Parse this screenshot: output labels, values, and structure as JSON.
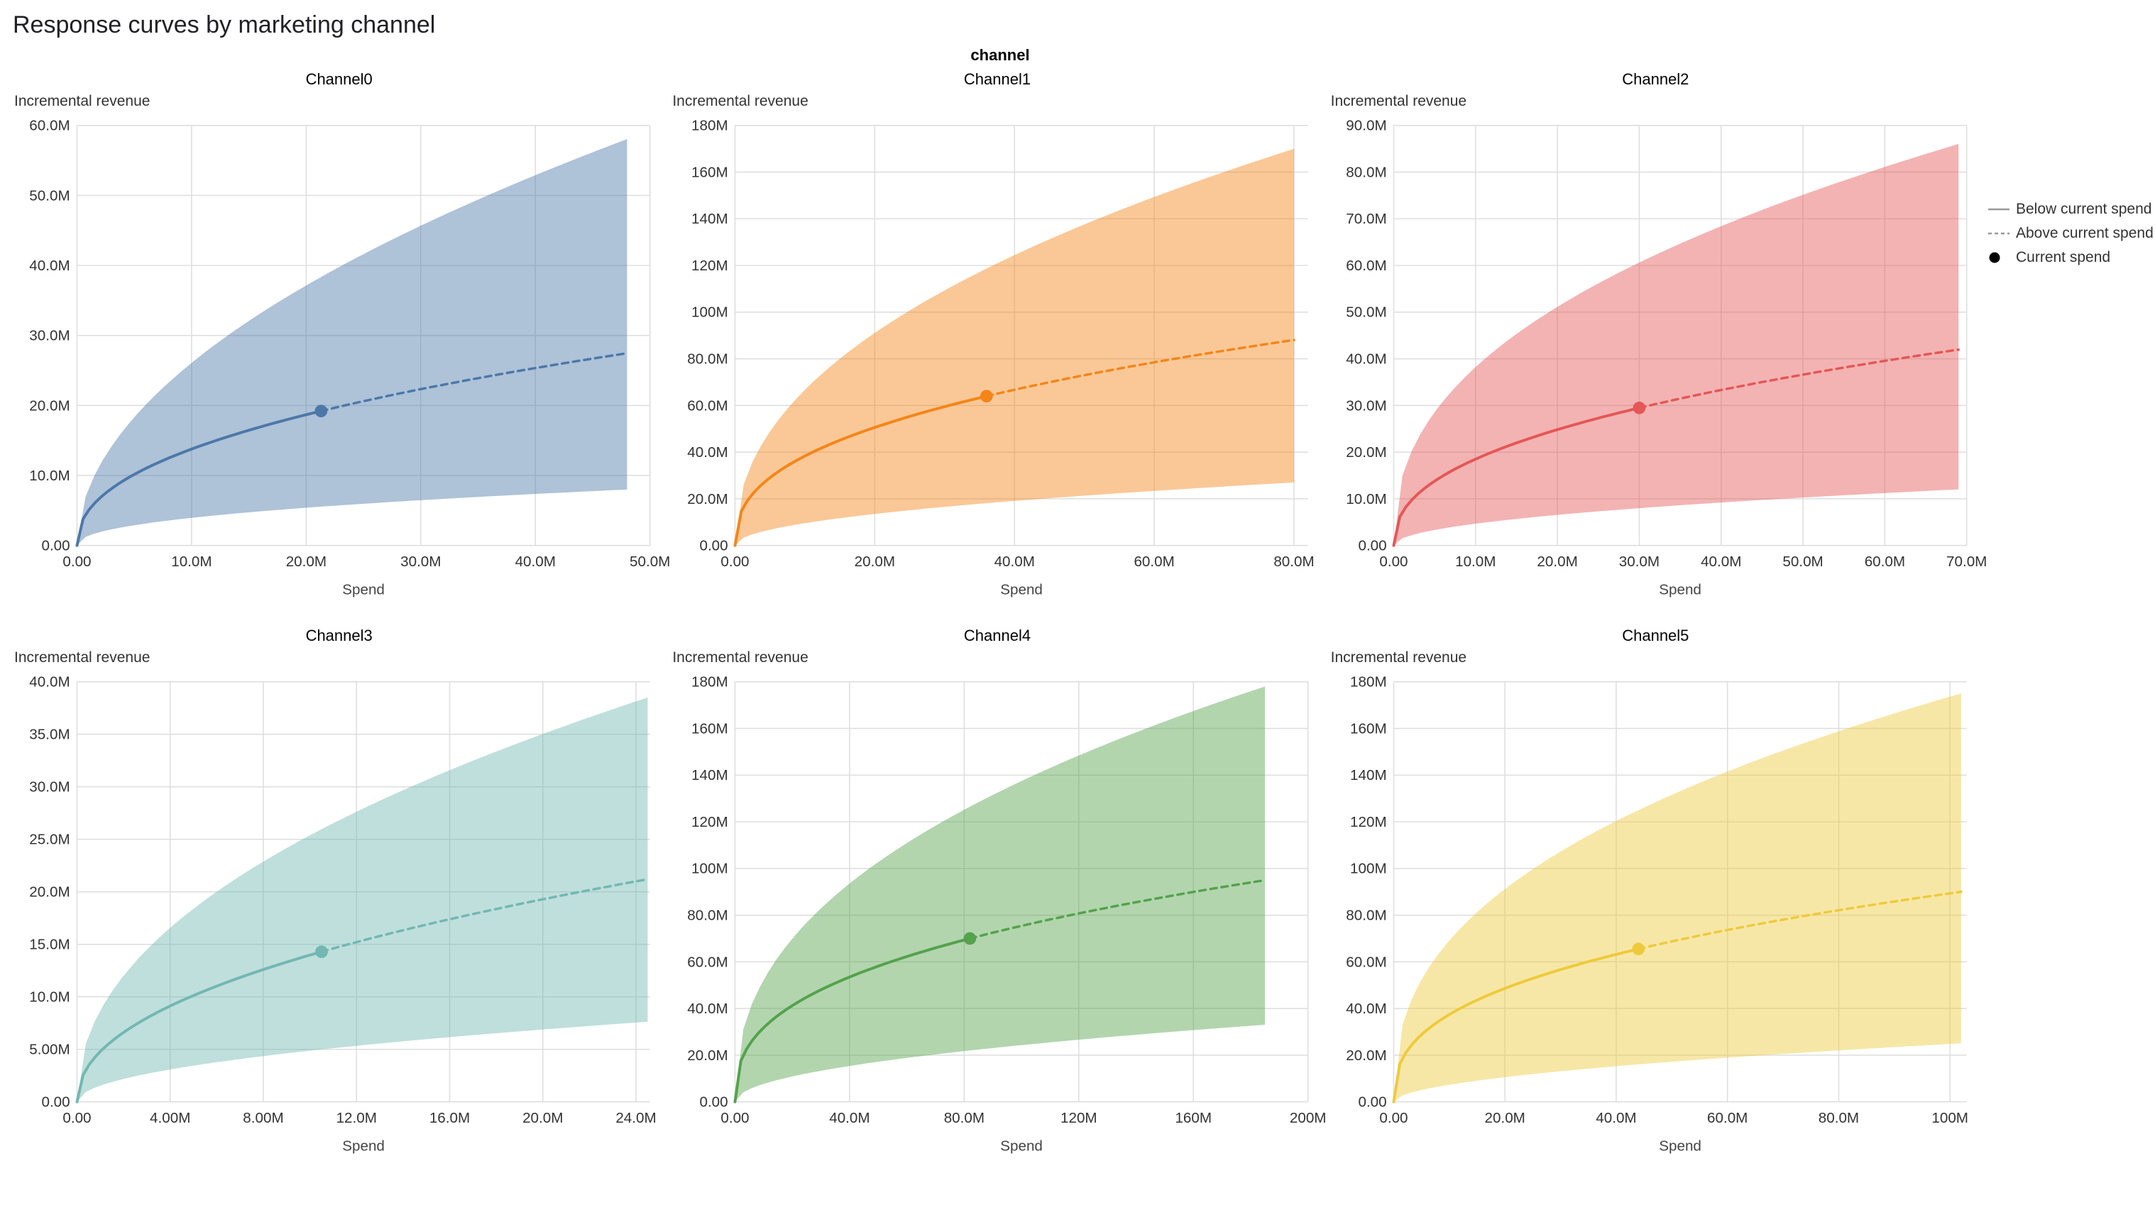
{
  "page": {
    "title": "Response curves by marketing channel",
    "facet_title": "channel"
  },
  "legend": {
    "symbol_color": "#999999",
    "dot_color": "#000000",
    "items": [
      {
        "label": "Below current spend",
        "symbol": "solid-line"
      },
      {
        "label": "Above current spend",
        "symbol": "dashed-line"
      },
      {
        "label": "Current spend",
        "symbol": "dot"
      }
    ]
  },
  "chart_data": {
    "type": "line",
    "subtype": "response-curves with confidence bands, small multiples 2x3",
    "title": "Response curves by marketing channel",
    "facet_title": "channel",
    "xlabel": "Spend",
    "ylabel": "Incremental revenue",
    "units": "M = millions",
    "grid": true,
    "legend_position": "top-right",
    "charts": [
      {
        "title": "Channel0",
        "color": "#4c78a8",
        "x_domain": [
          0,
          50
        ],
        "y_domain": [
          0,
          60
        ],
        "x_ticks": [
          {
            "v": 0,
            "label": "0.00"
          },
          {
            "v": 10,
            "label": "10.0M"
          },
          {
            "v": 20,
            "label": "20.0M"
          },
          {
            "v": 30,
            "label": "30.0M"
          },
          {
            "v": 40,
            "label": "40.0M"
          },
          {
            "v": 50,
            "label": "50.0M"
          }
        ],
        "y_ticks": [
          {
            "v": 0,
            "label": "0.00"
          },
          {
            "v": 10,
            "label": "10.0M"
          },
          {
            "v": 20,
            "label": "20.0M"
          },
          {
            "v": 30,
            "label": "30.0M"
          },
          {
            "v": 40,
            "label": "40.0M"
          },
          {
            "v": 50,
            "label": "50.0M"
          },
          {
            "v": 60,
            "label": "60.0M"
          }
        ],
        "current_spend": {
          "x": 21.3,
          "y": 19.0
        },
        "curve": {
          "x_end": 48,
          "mean": {
            "c": 5.0,
            "b": 0.44
          },
          "upper": {
            "c": 8.06,
            "b": 0.51
          },
          "lower": {
            "c": 1.4,
            "b": 0.45
          }
        },
        "mean_points": {
          "x": [
            0,
            10,
            20,
            30,
            40,
            48
          ],
          "y": [
            0,
            13.8,
            18.7,
            22.3,
            25.3,
            27.5
          ]
        },
        "upper_points": {
          "x": [
            0,
            10,
            20,
            30,
            40,
            48
          ],
          "y": [
            0,
            26.1,
            37.1,
            45.7,
            52.9,
            58.0
          ]
        },
        "lower_points": {
          "x": [
            0,
            10,
            20,
            30,
            40,
            48
          ],
          "y": [
            0,
            3.9,
            5.4,
            6.5,
            7.4,
            8.0
          ]
        }
      },
      {
        "title": "Channel1",
        "color": "#f58518",
        "x_domain": [
          0,
          82
        ],
        "y_domain": [
          0,
          180
        ],
        "x_ticks": [
          {
            "v": 0,
            "label": "0.00"
          },
          {
            "v": 20,
            "label": "20.0M"
          },
          {
            "v": 40,
            "label": "40.0M"
          },
          {
            "v": 60,
            "label": "60.0M"
          },
          {
            "v": 80,
            "label": "80.0M"
          }
        ],
        "y_ticks": [
          {
            "v": 0,
            "label": "0.00"
          },
          {
            "v": 20,
            "label": "20.0M"
          },
          {
            "v": 40,
            "label": "40.0M"
          },
          {
            "v": 60,
            "label": "60.0M"
          },
          {
            "v": 80,
            "label": "80.0M"
          },
          {
            "v": 100,
            "label": "100M"
          },
          {
            "v": 120,
            "label": "120M"
          },
          {
            "v": 140,
            "label": "140M"
          },
          {
            "v": 160,
            "label": "160M"
          },
          {
            "v": 180,
            "label": "180M"
          }
        ],
        "current_spend": {
          "x": 36,
          "y": 64.0
        },
        "curve": {
          "x_end": 80,
          "mean": {
            "c": 15.26,
            "b": 0.4
          },
          "upper": {
            "c": 23.66,
            "b": 0.45
          },
          "lower": {
            "c": 3.02,
            "b": 0.5
          }
        },
        "mean_points": {
          "x": [
            0,
            20,
            40,
            60,
            80
          ],
          "y": [
            0,
            50.6,
            66.7,
            78.5,
            88.1
          ]
        },
        "upper_points": {
          "x": [
            0,
            20,
            40,
            60,
            80
          ],
          "y": [
            0,
            91.1,
            124.4,
            149.3,
            170.0
          ]
        },
        "lower_points": {
          "x": [
            0,
            20,
            40,
            60,
            80
          ],
          "y": [
            0,
            13.5,
            19.1,
            23.4,
            27.0
          ]
        }
      },
      {
        "title": "Channel2",
        "color": "#e45756",
        "x_domain": [
          0,
          70
        ],
        "y_domain": [
          0,
          90
        ],
        "x_ticks": [
          {
            "v": 0,
            "label": "0.00"
          },
          {
            "v": 10,
            "label": "10.0M"
          },
          {
            "v": 20,
            "label": "20.0M"
          },
          {
            "v": 30,
            "label": "30.0M"
          },
          {
            "v": 40,
            "label": "40.0M"
          },
          {
            "v": 50,
            "label": "50.0M"
          },
          {
            "v": 60,
            "label": "60.0M"
          },
          {
            "v": 70,
            "label": "70.0M"
          }
        ],
        "y_ticks": [
          {
            "v": 0,
            "label": "0.00"
          },
          {
            "v": 10,
            "label": "10.0M"
          },
          {
            "v": 20,
            "label": "20.0M"
          },
          {
            "v": 30,
            "label": "30.0M"
          },
          {
            "v": 40,
            "label": "40.0M"
          },
          {
            "v": 50,
            "label": "50.0M"
          },
          {
            "v": 60,
            "label": "60.0M"
          },
          {
            "v": 70,
            "label": "70.0M"
          },
          {
            "v": 80,
            "label": "80.0M"
          },
          {
            "v": 90,
            "label": "90.0M"
          }
        ],
        "current_spend": {
          "x": 30,
          "y": 29.5
        },
        "curve": {
          "x_end": 69,
          "mean": {
            "c": 6.97,
            "b": 0.424
          },
          "upper": {
            "c": 14.53,
            "b": 0.42
          },
          "lower": {
            "c": 1.51,
            "b": 0.49
          }
        },
        "mean_points": {
          "x": [
            0,
            10,
            20,
            30,
            40,
            50,
            60,
            69
          ],
          "y": [
            0,
            18.5,
            24.8,
            29.5,
            33.3,
            36.6,
            39.6,
            42.0
          ]
        },
        "upper_points": {
          "x": [
            0,
            10,
            20,
            30,
            40,
            50,
            60,
            69
          ],
          "y": [
            0,
            38.2,
            51.1,
            60.6,
            68.4,
            75.1,
            81.1,
            86.0
          ]
        },
        "lower_points": {
          "x": [
            0,
            10,
            20,
            30,
            40,
            50,
            60,
            69
          ],
          "y": [
            0,
            4.7,
            6.5,
            8.0,
            9.2,
            10.2,
            11.2,
            12.0
          ]
        }
      },
      {
        "title": "Channel3",
        "color": "#72b7b2",
        "x_domain": [
          0,
          24.6
        ],
        "y_domain": [
          0,
          40
        ],
        "x_ticks": [
          {
            "v": 0,
            "label": "0.00"
          },
          {
            "v": 4,
            "label": "4.00M"
          },
          {
            "v": 8,
            "label": "8.00M"
          },
          {
            "v": 12,
            "label": "12.0M"
          },
          {
            "v": 16,
            "label": "16.0M"
          },
          {
            "v": 20,
            "label": "20.0M"
          },
          {
            "v": 24,
            "label": "24.0M"
          }
        ],
        "y_ticks": [
          {
            "v": 0,
            "label": "0.00"
          },
          {
            "v": 5,
            "label": "5.00M"
          },
          {
            "v": 10,
            "label": "10.0M"
          },
          {
            "v": 15,
            "label": "15.0M"
          },
          {
            "v": 20,
            "label": "20.0M"
          },
          {
            "v": 25,
            "label": "25.0M"
          },
          {
            "v": 30,
            "label": "30.0M"
          },
          {
            "v": 35,
            "label": "35.0M"
          },
          {
            "v": 40,
            "label": "40.0M"
          }
        ],
        "current_spend": {
          "x": 10.5,
          "y": 14.3
        },
        "curve": {
          "x_end": 24.5,
          "mean": {
            "c": 4.79,
            "b": 0.465
          },
          "upper": {
            "c": 8.7,
            "b": 0.465
          },
          "lower": {
            "c": 1.54,
            "b": 0.5
          }
        },
        "mean_points": {
          "x": [
            0,
            4,
            8,
            12,
            16,
            20,
            24.5
          ],
          "y": [
            0,
            9.1,
            12.6,
            15.2,
            17.4,
            19.3,
            21.2
          ]
        },
        "upper_points": {
          "x": [
            0,
            4,
            8,
            12,
            16,
            20,
            24.5
          ],
          "y": [
            0,
            16.6,
            22.9,
            27.6,
            31.6,
            35.0,
            38.5
          ]
        },
        "lower_points": {
          "x": [
            0,
            4,
            8,
            12,
            16,
            20,
            24.5
          ],
          "y": [
            0,
            3.1,
            4.3,
            5.3,
            6.1,
            6.9,
            7.6
          ]
        }
      },
      {
        "title": "Channel4",
        "color": "#54a24b",
        "x_domain": [
          0,
          200
        ],
        "y_domain": [
          0,
          180
        ],
        "x_ticks": [
          {
            "v": 0,
            "label": "0.00"
          },
          {
            "v": 40,
            "label": "40.0M"
          },
          {
            "v": 80,
            "label": "80.0M"
          },
          {
            "v": 120,
            "label": "120M"
          },
          {
            "v": 160,
            "label": "160M"
          },
          {
            "v": 200,
            "label": "200M"
          }
        ],
        "y_ticks": [
          {
            "v": 0,
            "label": "0.00"
          },
          {
            "v": 20,
            "label": "20.0M"
          },
          {
            "v": 40,
            "label": "40.0M"
          },
          {
            "v": 60,
            "label": "60.0M"
          },
          {
            "v": 80,
            "label": "80.0M"
          },
          {
            "v": 100,
            "label": "100M"
          },
          {
            "v": 120,
            "label": "120M"
          },
          {
            "v": 140,
            "label": "140M"
          },
          {
            "v": 160,
            "label": "160M"
          },
          {
            "v": 180,
            "label": "180M"
          }
        ],
        "current_spend": {
          "x": 82,
          "y": 70.0
        },
        "curve": {
          "x_end": 185,
          "mean": {
            "c": 13.41,
            "b": 0.375
          },
          "upper": {
            "c": 19.87,
            "b": 0.42
          },
          "lower": {
            "c": 2.43,
            "b": 0.5
          }
        },
        "mean_points": {
          "x": [
            0,
            40,
            80,
            120,
            160,
            185
          ],
          "y": [
            0,
            53.5,
            69.4,
            80.7,
            89.9,
            95.0
          ]
        },
        "upper_points": {
          "x": [
            0,
            40,
            80,
            120,
            160,
            185
          ],
          "y": [
            0,
            93.6,
            125.2,
            148.4,
            167.5,
            178.0
          ]
        },
        "lower_points": {
          "x": [
            0,
            40,
            80,
            120,
            160,
            185
          ],
          "y": [
            0,
            15.3,
            21.7,
            26.6,
            30.7,
            33.0
          ]
        }
      },
      {
        "title": "Channel5",
        "color": "#eeca3b",
        "x_domain": [
          0,
          103
        ],
        "y_domain": [
          0,
          180
        ],
        "x_ticks": [
          {
            "v": 0,
            "label": "0.00"
          },
          {
            "v": 20,
            "label": "20.0M"
          },
          {
            "v": 40,
            "label": "40.0M"
          },
          {
            "v": 60,
            "label": "60.0M"
          },
          {
            "v": 80,
            "label": "80.0M"
          },
          {
            "v": 100,
            "label": "100M"
          }
        ],
        "y_ticks": [
          {
            "v": 0,
            "label": "0.00"
          },
          {
            "v": 20,
            "label": "20.0M"
          },
          {
            "v": 40,
            "label": "40.0M"
          },
          {
            "v": 60,
            "label": "60.0M"
          },
          {
            "v": 80,
            "label": "80.0M"
          },
          {
            "v": 100,
            "label": "100M"
          },
          {
            "v": 120,
            "label": "120M"
          },
          {
            "v": 140,
            "label": "140M"
          },
          {
            "v": 160,
            "label": "160M"
          },
          {
            "v": 180,
            "label": "180M"
          }
        ],
        "current_spend": {
          "x": 44,
          "y": 65.5
        },
        "curve": {
          "x_end": 102,
          "mean": {
            "c": 15.67,
            "b": 0.378
          },
          "upper": {
            "c": 27.52,
            "b": 0.4
          },
          "lower": {
            "c": 2.16,
            "b": 0.53
          }
        },
        "mean_points": {
          "x": [
            0,
            20,
            40,
            60,
            80,
            100,
            102
          ],
          "y": [
            0,
            48.6,
            63.2,
            73.7,
            82.1,
            89.4,
            90.0
          ]
        },
        "upper_points": {
          "x": [
            0,
            20,
            40,
            60,
            80,
            100,
            102
          ],
          "y": [
            0,
            91.2,
            120.3,
            141.5,
            158.8,
            173.6,
            175.0
          ]
        },
        "lower_points": {
          "x": [
            0,
            20,
            40,
            60,
            80,
            100,
            102
          ],
          "y": [
            0,
            10.5,
            15.2,
            18.9,
            22.0,
            24.7,
            25.0
          ]
        }
      }
    ]
  }
}
